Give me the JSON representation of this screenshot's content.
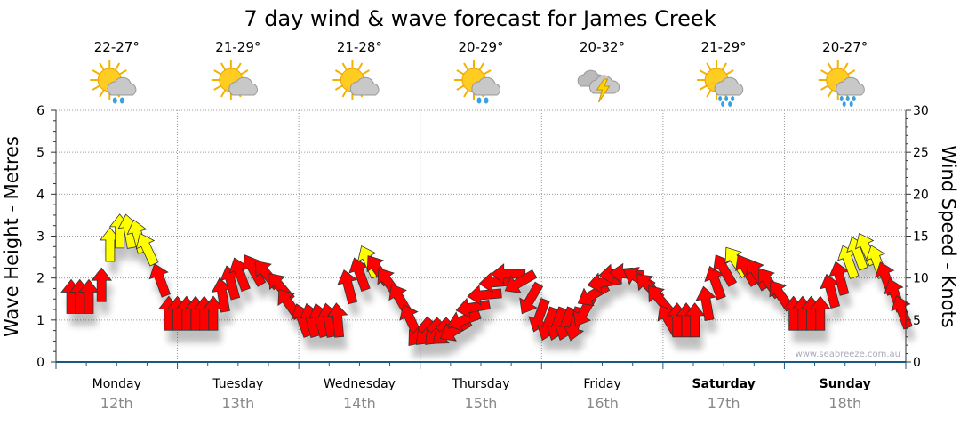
{
  "chart_data": {
    "type": "scatter",
    "title": "7 day wind & wave forecast for James Creek",
    "ylabel": "Wave Height - Metres",
    "y2label": "Wind Speed - Knots",
    "ylim": [
      0,
      6
    ],
    "y2lim": [
      0,
      30
    ],
    "yticks": [
      "0",
      "1",
      "2",
      "3",
      "4",
      "5",
      "6"
    ],
    "y2ticks": [
      "0",
      "5",
      "10",
      "15",
      "20",
      "25",
      "30"
    ],
    "grid": true,
    "watermark": "www.seabreeze.com.au",
    "hours_total": 168,
    "yellow_threshold_knots": 11.5,
    "colors": {
      "calm": "#ff0000",
      "strong": "#ffff00",
      "axis": "#1a5a80",
      "date": "#888888"
    },
    "days": [
      {
        "name": "Monday",
        "date": "12th",
        "temp": "22-27°",
        "icon": "sun-cloud-shower-icon",
        "bold": false
      },
      {
        "name": "Tuesday",
        "date": "13th",
        "temp": "21-29°",
        "icon": "sun-cloud-icon",
        "bold": false
      },
      {
        "name": "Wednesday",
        "date": "14th",
        "temp": "21-28°",
        "icon": "sun-cloud-icon",
        "bold": false
      },
      {
        "name": "Thursday",
        "date": "15th",
        "temp": "20-29°",
        "icon": "sun-cloud-shower-icon",
        "bold": false
      },
      {
        "name": "Friday",
        "date": "16th",
        "temp": "20-32°",
        "icon": "thunderstorm-icon",
        "bold": false
      },
      {
        "name": "Saturday",
        "date": "17th",
        "temp": "21-29°",
        "icon": "sun-cloud-rain-icon",
        "bold": true
      },
      {
        "name": "Sunday",
        "date": "18th",
        "temp": "20-27°",
        "icon": "sun-cloud-rain-icon",
        "bold": true
      }
    ],
    "wind_points_note": "[hour, knots, arrow direction degrees (0=pointing up)]",
    "wind": [
      [
        3,
        7.8,
        0
      ],
      [
        4.7,
        7.8,
        0
      ],
      [
        6.5,
        7.8,
        0
      ],
      [
        9,
        9.2,
        0
      ],
      [
        10.7,
        14,
        0
      ],
      [
        12.6,
        15.6,
        0
      ],
      [
        14.4,
        15.6,
        -10
      ],
      [
        16.2,
        15,
        -15
      ],
      [
        18,
        13.5,
        -25
      ],
      [
        20.6,
        9.8,
        -20
      ],
      [
        22.3,
        5.8,
        0
      ],
      [
        24,
        5.8,
        0
      ],
      [
        25.8,
        5.8,
        0
      ],
      [
        27.6,
        5.8,
        0
      ],
      [
        29.3,
        5.8,
        0
      ],
      [
        31.1,
        5.8,
        0
      ],
      [
        32.9,
        8,
        -10
      ],
      [
        34.6,
        9.5,
        -15
      ],
      [
        36.4,
        10.5,
        -20
      ],
      [
        39,
        11,
        -30
      ],
      [
        41.6,
        10.5,
        -40
      ],
      [
        44.3,
        9,
        -40
      ],
      [
        46,
        7,
        -35
      ],
      [
        48.7,
        5,
        -20
      ],
      [
        50.4,
        5,
        -15
      ],
      [
        52.2,
        5,
        -15
      ],
      [
        53.9,
        5,
        -10
      ],
      [
        55.7,
        5,
        -5
      ],
      [
        57.8,
        9,
        -15
      ],
      [
        60.1,
        10.5,
        -20
      ],
      [
        61.8,
        12,
        -25
      ],
      [
        63.6,
        11,
        -35
      ],
      [
        65.7,
        9.5,
        -35
      ],
      [
        68,
        7.5,
        -30
      ],
      [
        70.1,
        5,
        -25
      ],
      [
        71.9,
        3.5,
        -140
      ],
      [
        73.6,
        3.5,
        -135
      ],
      [
        75.4,
        3.5,
        -135
      ],
      [
        77.1,
        3.5,
        -130
      ],
      [
        78.9,
        3.8,
        -120
      ],
      [
        80.6,
        5,
        -110
      ],
      [
        82.4,
        6.5,
        -100
      ],
      [
        84.7,
        8,
        -95
      ],
      [
        87,
        9.5,
        -95
      ],
      [
        89.4,
        10.5,
        -90
      ],
      [
        91.7,
        9.5,
        -120
      ],
      [
        93.8,
        7.5,
        -150
      ],
      [
        95.6,
        5.5,
        -160
      ],
      [
        97.3,
        4.5,
        -160
      ],
      [
        99.1,
        4.5,
        -160
      ],
      [
        100.8,
        4.5,
        -160
      ],
      [
        102.6,
        4.5,
        -165
      ],
      [
        104.4,
        6,
        -150
      ],
      [
        106.1,
        8,
        -120
      ],
      [
        108.4,
        9.5,
        -100
      ],
      [
        110.7,
        10.5,
        -95
      ],
      [
        112.8,
        10.5,
        -85
      ],
      [
        115.1,
        10,
        -60
      ],
      [
        117.2,
        9,
        -45
      ],
      [
        119.3,
        7.5,
        -40
      ],
      [
        121.1,
        5,
        -30
      ],
      [
        122.8,
        5,
        0
      ],
      [
        124.6,
        5,
        0
      ],
      [
        126.3,
        5,
        0
      ],
      [
        128.6,
        7,
        -10
      ],
      [
        130.4,
        9.5,
        -20
      ],
      [
        132.1,
        11,
        -30
      ],
      [
        134.4,
        12,
        -35
      ],
      [
        136.5,
        11,
        -30
      ],
      [
        138.6,
        10.5,
        -30
      ],
      [
        140.9,
        9.5,
        -35
      ],
      [
        143.2,
        8,
        -35
      ],
      [
        145.8,
        5.8,
        0
      ],
      [
        147.6,
        5.8,
        0
      ],
      [
        149.3,
        5.8,
        0
      ],
      [
        151.1,
        5.8,
        0
      ],
      [
        153.2,
        8.5,
        -15
      ],
      [
        155,
        10,
        -15
      ],
      [
        156.7,
        12,
        -20
      ],
      [
        158.5,
        13,
        -20
      ],
      [
        160.2,
        13.5,
        -25
      ],
      [
        162.3,
        12,
        -20
      ],
      [
        164.1,
        10,
        -20
      ],
      [
        165.9,
        8,
        -20
      ],
      [
        167.3,
        6,
        -20
      ]
    ]
  }
}
